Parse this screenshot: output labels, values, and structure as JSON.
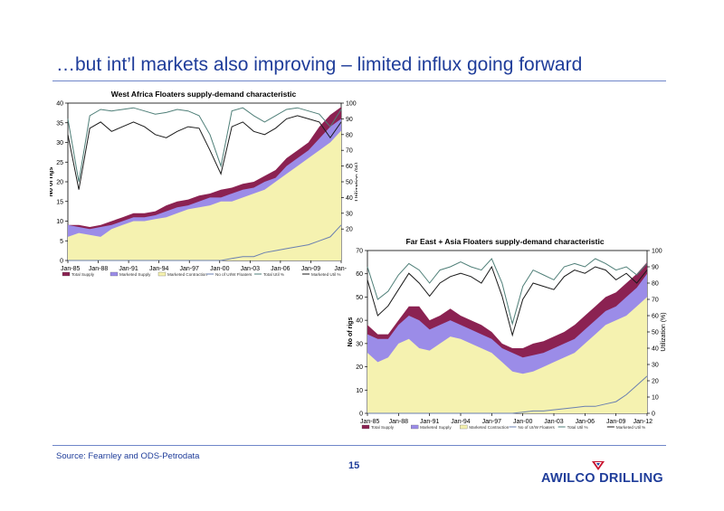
{
  "page": {
    "title": "…but int’l markets also improving – limited influx going forward",
    "source": "Source: Fearnley and ODS-Petrodata",
    "page_number": "15",
    "logo": "AWILCO DRILLING"
  },
  "colors": {
    "total_supply": "#8b2252",
    "marketed_supply": "#9b8ce8",
    "marketed_contraction": "#f5f2b0",
    "no_of_uw_floaters": "#000000",
    "total_util": "#4f7f78",
    "marketed_util": "#1a1a1a",
    "uw_line": "#6a7fb0",
    "brand_blue": "#1f3d9a",
    "logo_red": "#c8102e"
  },
  "chart_data": [
    {
      "type": "area",
      "title": "West Africa Floaters supply-demand characteristic",
      "ylabel": "No of rigs",
      "y2label": "Utilization (%)",
      "ylim": [
        0,
        40
      ],
      "y2lim": [
        0,
        100
      ],
      "yticks": [
        "0",
        "5",
        "10",
        "15",
        "20",
        "25",
        "30",
        "35",
        "40"
      ],
      "y2ticks": [
        "20",
        "30",
        "40",
        "50",
        "60",
        "70",
        "80",
        "90",
        "100"
      ],
      "xticks": [
        "Jan-85",
        "Jan-88",
        "Jan-91",
        "Jan-94",
        "Jan-97",
        "Jan-00",
        "Jan-03",
        "Jan-06",
        "Jan-09",
        "Jan-"
      ],
      "x": [
        1985,
        1986,
        1987,
        1988,
        1989,
        1990,
        1991,
        1992,
        1993,
        1994,
        1995,
        1996,
        1997,
        1998,
        1999,
        2000,
        2001,
        2002,
        2003,
        2004,
        2005,
        2006,
        2007,
        2008,
        2009,
        2010
      ],
      "legend": [
        "Total Supply",
        "Marketed Supply",
        "Marketed Contraction",
        "No of UI/W Floaters",
        "Total Util %",
        "Marketed Util %"
      ],
      "series": [
        {
          "name": "Marketed Contraction",
          "values": [
            6,
            7,
            6.5,
            6,
            8,
            9,
            10,
            10,
            10.5,
            11,
            12,
            13,
            13.5,
            14,
            15,
            15,
            16,
            17,
            18,
            20,
            22,
            24,
            26,
            28,
            30,
            33
          ]
        },
        {
          "name": "Marketed Supply",
          "values": [
            9,
            8.5,
            8,
            8.5,
            9,
            10,
            11,
            11,
            11.5,
            12.5,
            13.5,
            14,
            15,
            16,
            16,
            17,
            18,
            18.5,
            20,
            21,
            24,
            26,
            28,
            31,
            34,
            36
          ]
        },
        {
          "name": "Total Supply",
          "values": [
            9,
            9,
            8.5,
            9,
            10,
            11,
            12,
            12,
            12.5,
            14,
            15,
            15.5,
            16.5,
            17,
            18,
            18.5,
            19.5,
            20,
            21.5,
            23,
            26,
            28,
            30,
            34,
            37,
            39
          ]
        },
        {
          "name": "No of UI/W Floaters",
          "values": [
            0,
            0,
            0,
            0,
            0,
            0,
            0,
            0,
            0,
            0,
            0,
            0,
            0,
            0,
            0,
            0.5,
            1,
            1,
            2,
            2.5,
            3,
            3.5,
            4,
            5,
            6,
            9
          ]
        },
        {
          "name": "Total Util %",
          "values": [
            90,
            50,
            92,
            96,
            95,
            96,
            97,
            95,
            93,
            94,
            96,
            95,
            92,
            80,
            60,
            95,
            97,
            92,
            88,
            92,
            96,
            97,
            95,
            93,
            85,
            96
          ]
        },
        {
          "name": "Marketed Util %",
          "values": [
            80,
            45,
            84,
            88,
            82,
            85,
            88,
            85,
            80,
            78,
            82,
            85,
            84,
            70,
            55,
            85,
            88,
            82,
            80,
            84,
            90,
            92,
            90,
            88,
            78,
            88
          ]
        }
      ]
    },
    {
      "type": "area",
      "title": "Far East + Asia Floaters supply-demand characteristic",
      "ylabel": "No of rigs",
      "y2label": "Utilization (%)",
      "ylim": [
        0,
        70
      ],
      "y2lim": [
        0,
        100
      ],
      "yticks": [
        "0",
        "10",
        "20",
        "30",
        "40",
        "50",
        "60",
        "70"
      ],
      "y2ticks": [
        "0",
        "10",
        "20",
        "30",
        "40",
        "50",
        "60",
        "70",
        "80",
        "90",
        "100"
      ],
      "xticks": [
        "Jan-85",
        "Jan-88",
        "Jan-91",
        "Jan-94",
        "Jan-97",
        "Jan-00",
        "Jan-03",
        "Jan-06",
        "Jan-09",
        "Jan-12"
      ],
      "x": [
        1985,
        1986,
        1987,
        1988,
        1989,
        1990,
        1991,
        1992,
        1993,
        1994,
        1995,
        1996,
        1997,
        1998,
        1999,
        2000,
        2001,
        2002,
        2003,
        2004,
        2005,
        2006,
        2007,
        2008,
        2009,
        2010,
        2011,
        2012
      ],
      "legend": [
        "Total Supply",
        "Marketed Supply",
        "Marketed Contraction",
        "No of UI/W Floaters",
        "Total Util %",
        "Marketed Util %"
      ],
      "series": [
        {
          "name": "Marketed Contraction",
          "values": [
            26,
            22,
            24,
            30,
            32,
            28,
            27,
            30,
            33,
            32,
            30,
            28,
            26,
            22,
            18,
            17,
            18,
            20,
            22,
            24,
            26,
            30,
            34,
            38,
            40,
            42,
            46,
            50
          ]
        },
        {
          "name": "Marketed Supply",
          "values": [
            34,
            32,
            32,
            38,
            42,
            40,
            36,
            38,
            40,
            38,
            36,
            34,
            32,
            28,
            26,
            24,
            25,
            26,
            28,
            30,
            32,
            36,
            40,
            44,
            46,
            50,
            54,
            60
          ]
        },
        {
          "name": "Total Supply",
          "values": [
            38,
            34,
            34,
            40,
            46,
            46,
            40,
            42,
            45,
            42,
            40,
            38,
            35,
            30,
            28,
            28,
            30,
            31,
            33,
            35,
            38,
            42,
            46,
            50,
            52,
            56,
            60,
            65
          ]
        },
        {
          "name": "No of UI/W Floaters",
          "values": [
            0,
            0,
            0,
            0,
            0,
            0,
            0,
            0,
            0,
            0,
            0,
            0,
            0,
            0,
            0,
            0.5,
            1,
            1,
            1.5,
            2,
            2.5,
            3,
            3,
            4,
            5,
            8,
            12,
            16
          ]
        },
        {
          "name": "Total Util %",
          "values": [
            90,
            70,
            75,
            85,
            92,
            88,
            80,
            88,
            90,
            93,
            90,
            88,
            95,
            80,
            55,
            78,
            88,
            85,
            82,
            90,
            92,
            90,
            95,
            92,
            88,
            90,
            85,
            92
          ]
        },
        {
          "name": "Marketed Util %",
          "values": [
            82,
            60,
            66,
            76,
            86,
            80,
            72,
            80,
            84,
            86,
            84,
            80,
            90,
            72,
            48,
            70,
            80,
            78,
            76,
            84,
            88,
            86,
            90,
            88,
            82,
            86,
            80,
            88
          ]
        }
      ]
    }
  ]
}
